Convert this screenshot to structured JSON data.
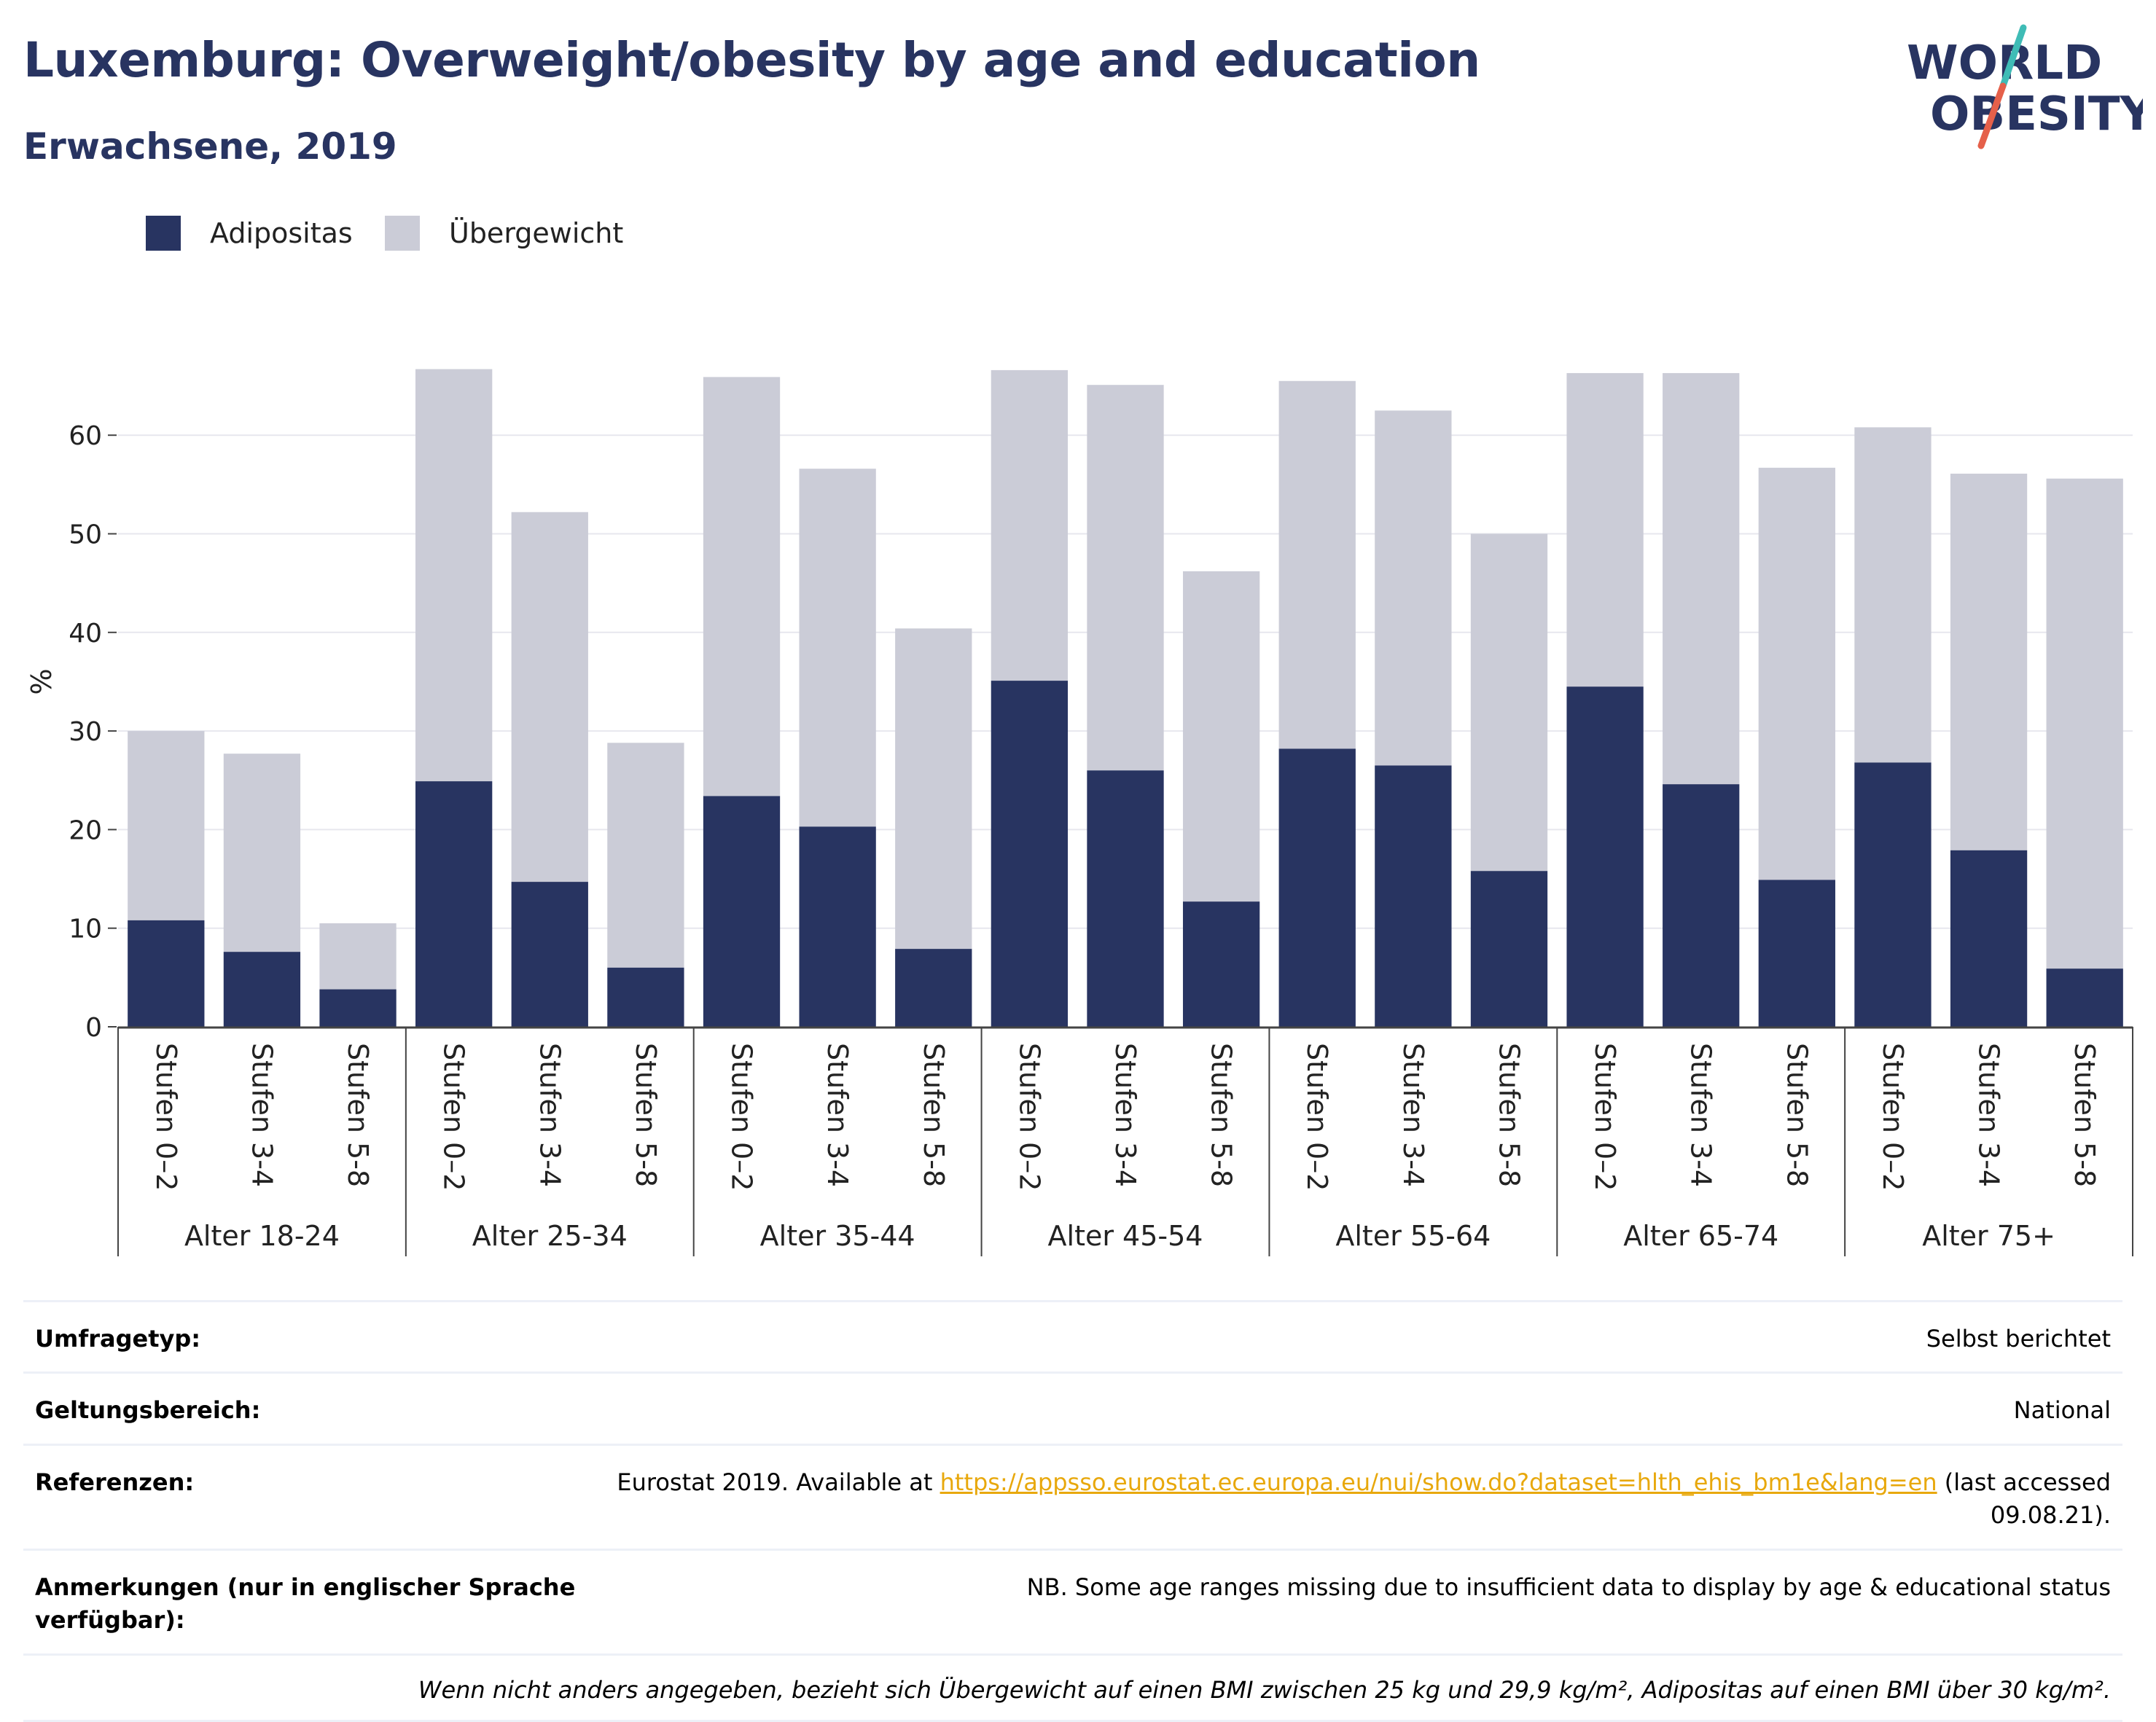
{
  "title": "Luxemburg: Overweight/obesity by age and education",
  "subtitle": "Erwachsene, 2019",
  "logo": {
    "line1": "WORLD",
    "line2": "OBESITY",
    "colors": {
      "text": "#283461",
      "slash_top": "#3fbcb6",
      "slash_bottom": "#e5604a"
    }
  },
  "colors": {
    "obesity": "#283461",
    "overweight": "#cbccd7",
    "grid": "#e7e7ee",
    "axis": "#444444"
  },
  "chart_data": {
    "type": "bar",
    "stacked": true,
    "ylabel": "%",
    "ylim": [
      0,
      70
    ],
    "yticks": [
      0,
      10,
      20,
      30,
      40,
      50,
      60
    ],
    "grid": true,
    "legend_position": "top-left",
    "groups": [
      "Alter 18-24",
      "Alter 25-34",
      "Alter 35-44",
      "Alter 45-54",
      "Alter 55-64",
      "Alter 65-74",
      "Alter 75+"
    ],
    "subcategories": [
      "Stufen 0–2",
      "Stufen 3-4",
      "Stufen 5-8"
    ],
    "series": [
      {
        "name": "Adipositas",
        "color": "#283461",
        "values": [
          10.8,
          7.6,
          3.8,
          24.9,
          14.7,
          6.0,
          23.4,
          20.3,
          7.9,
          35.1,
          26.0,
          12.7,
          28.2,
          26.5,
          15.8,
          34.5,
          24.6,
          14.9,
          26.8,
          17.9,
          5.9
        ]
      },
      {
        "name": "Übergewicht",
        "color": "#cbccd7",
        "values": [
          19.2,
          20.1,
          6.7,
          41.8,
          37.5,
          22.8,
          42.5,
          36.3,
          32.5,
          31.5,
          39.1,
          33.5,
          37.3,
          36.0,
          34.2,
          31.8,
          41.7,
          41.8,
          34.0,
          38.2,
          49.7
        ]
      }
    ]
  },
  "info": {
    "survey_type": {
      "label": "Umfragetyp:",
      "value": "Selbst berichtet"
    },
    "coverage": {
      "label": "Geltungsbereich:",
      "value": "National"
    },
    "references": {
      "label": "Referenzen:",
      "value_pre": "Eurostat 2019. Available at ",
      "link": "https://appsso.eurostat.ec.europa.eu/nui/show.do?dataset=hlth_ehis_bm1e&lang=en",
      "value_post": " (last accessed 09.08.21)."
    },
    "notes": {
      "label": "Anmerkungen (nur in englischer Sprache verfügbar):",
      "value": "NB. Some age ranges missing due to insufficient data to display by age & educational status"
    },
    "footnote": "Wenn nicht anders angegeben, bezieht sich Übergewicht auf einen BMI zwischen 25 kg und 29,9 kg/m², Adipositas auf einen BMI über 30 kg/m²."
  }
}
